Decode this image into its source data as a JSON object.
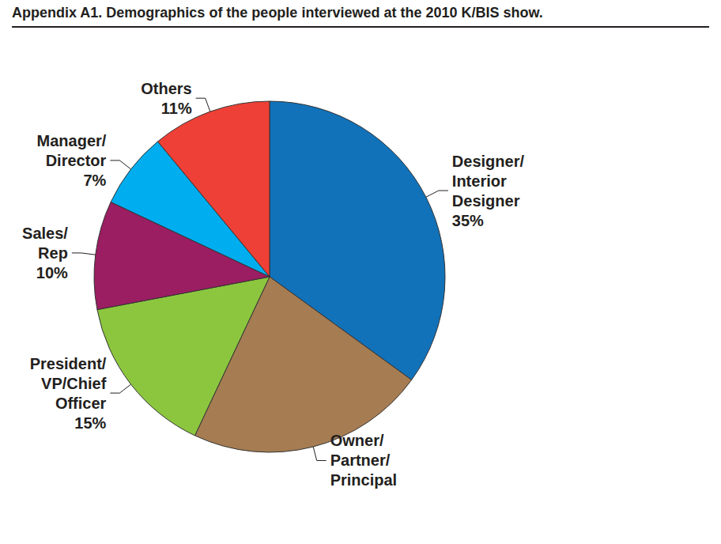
{
  "chart_data": {
    "type": "pie",
    "title": "Appendix A1. Demographics of the people interviewed at the 2010 K/BIS show.",
    "categories": [
      "Designer/\nInterior\nDesigner",
      "Owner/\nPartner/\nPrincipal",
      "President/\nVP/Chief\nOfficer",
      "Sales/\nRep",
      "Manager/\nDirector",
      "Others"
    ],
    "values": [
      35,
      22,
      15,
      10,
      7,
      11
    ],
    "value_labels": [
      "35%",
      null,
      "15%",
      "10%",
      "7%",
      "11%"
    ],
    "colors": [
      "#1172b9",
      "#a67c52",
      "#8cc63f",
      "#9b1d62",
      "#00adee",
      "#ee4036"
    ],
    "data_labels": true
  }
}
